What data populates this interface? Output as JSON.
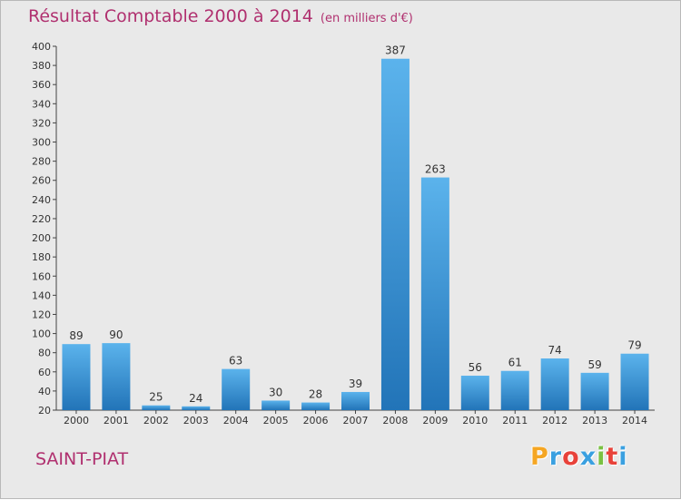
{
  "chart_data": {
    "type": "bar",
    "title": "Résultat Comptable 2000 à 2014",
    "subtitle": "(en milliers d'€)",
    "categories": [
      "2000",
      "2001",
      "2002",
      "2003",
      "2004",
      "2005",
      "2006",
      "2007",
      "2008",
      "2009",
      "2010",
      "2011",
      "2012",
      "2013",
      "2014"
    ],
    "values": [
      89,
      90,
      25,
      24,
      63,
      30,
      28,
      39,
      387,
      263,
      56,
      61,
      74,
      59,
      79
    ],
    "ylim": [
      20,
      400
    ],
    "yticks": [
      20,
      40,
      60,
      80,
      100,
      120,
      140,
      160,
      180,
      200,
      220,
      240,
      260,
      280,
      300,
      320,
      340,
      360,
      380,
      400
    ],
    "xlabel": "",
    "ylabel": "",
    "grid": false
  },
  "location": "SAINT-PIAT",
  "brand": {
    "name": "Proxiti",
    "letters": [
      "P",
      "r",
      "o",
      "x",
      "i",
      "t",
      "i"
    ],
    "letter_colors": [
      "#f5a623",
      "#3aa0e0",
      "#e8423a",
      "#3aa0e0",
      "#7ac142",
      "#e8423a",
      "#3aa0e0"
    ]
  },
  "colors": {
    "title": "#b0306f",
    "bar_top": "#5bb3ec",
    "bar_bottom": "#2274b8",
    "axis": "#444444",
    "background": "#e9e9e9"
  }
}
